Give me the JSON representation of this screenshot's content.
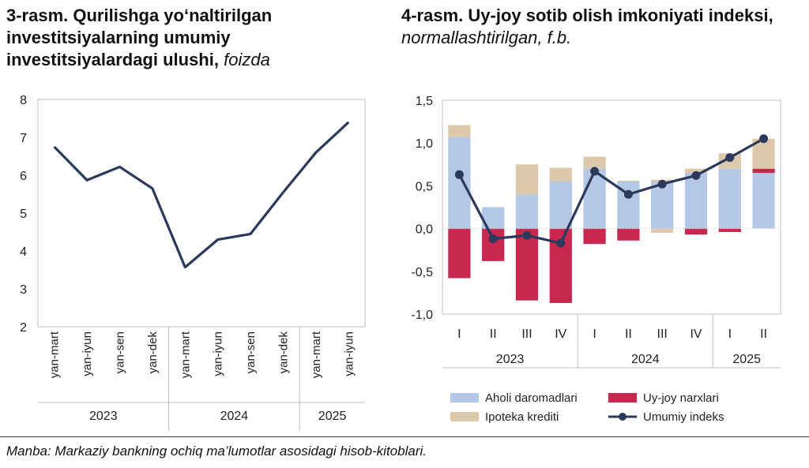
{
  "chart_data": [
    {
      "type": "line",
      "title": "3-rasm. Qurilishga yo‘naltirilgan investitsiyalarning umumiy investitsiyalardagi ulushi,",
      "title_unit": "foizda",
      "categories": [
        "yan-mart",
        "yan-iyun",
        "yan-sen",
        "yan-dek",
        "yan-mart",
        "yan-iyun",
        "yan-sen",
        "yan-dek",
        "yan-mart",
        "yan-iyun"
      ],
      "groups": [
        {
          "label": "2023",
          "count": 4
        },
        {
          "label": "2024",
          "count": 4
        },
        {
          "label": "2025",
          "count": 2
        }
      ],
      "ylim": [
        2,
        8
      ],
      "yticks": [
        "2",
        "3",
        "4",
        "5",
        "6",
        "7",
        "8"
      ],
      "series": [
        {
          "values": [
            6.75,
            5.87,
            6.22,
            5.65,
            3.57,
            4.3,
            4.45,
            5.55,
            6.6,
            7.4
          ]
        }
      ],
      "color": "#2b3a5c",
      "grid": false
    },
    {
      "type": "bar",
      "title": "4-rasm. Uy-joy sotib olish imkoniyati indeksi,",
      "title_unit": "normallashtirilgan, f.b.",
      "categories": [
        "I",
        "II",
        "III",
        "IV",
        "I",
        "II",
        "III",
        "IV",
        "I",
        "II"
      ],
      "groups": [
        {
          "label": "2023",
          "count": 4
        },
        {
          "label": "2024",
          "count": 4
        },
        {
          "label": "2025",
          "count": 2
        }
      ],
      "ylim": [
        -1.0,
        1.5
      ],
      "yticks": [
        "-1,0",
        "-0,5",
        "0,0",
        "0,5",
        "1,0",
        "1,5"
      ],
      "series": [
        {
          "name": "Aholi daromadlari",
          "color": "#b4c7e7",
          "values": [
            1.07,
            0.25,
            0.4,
            0.55,
            0.7,
            0.55,
            0.55,
            0.65,
            0.7,
            0.65
          ]
        },
        {
          "name": "Uy-joy narxlari",
          "color": "#c8274e",
          "values": [
            -0.58,
            -0.38,
            -0.84,
            -0.87,
            -0.18,
            -0.14,
            0.0,
            -0.07,
            -0.04,
            0.05
          ]
        },
        {
          "name": "Ipoteka krediti",
          "color": "#dcc8aa",
          "values": [
            0.14,
            0.0,
            0.35,
            0.16,
            0.14,
            0.01,
            0.02,
            0.05,
            0.18,
            0.35
          ]
        },
        {
          "name": "Umumiy indeks",
          "color": "#2b3a5c",
          "type": "line",
          "values": [
            0.63,
            -0.12,
            -0.08,
            -0.17,
            0.67,
            0.4,
            0.52,
            0.62,
            0.83,
            1.05
          ]
        }
      ],
      "extra_negative": [
        0,
        0,
        0,
        0,
        0,
        0,
        -0.05,
        0,
        0,
        0
      ],
      "legend": "bottom",
      "grid": false
    }
  ],
  "source_note": "Manba: Markaziy bankning ochiq ma’lumotlar asosidagi hisob-kitoblari."
}
